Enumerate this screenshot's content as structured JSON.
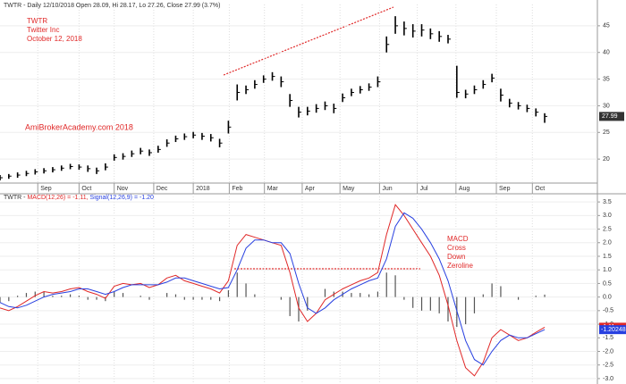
{
  "chart_data": [
    {
      "type": "ohlc",
      "title": "TWTR - Daily 12/10/2018 Open 28.09, Hi 28.17, Lo 27.26, Close 27.99 (3.7%)",
      "annotations": [
        "TWTR",
        "Twitter Inc",
        "October 12, 2018"
      ],
      "watermark": "AmiBrokerAcademy.com  2018",
      "last_label": "27.99",
      "color": "#000000",
      "high": [
        17.0,
        17.2,
        17.5,
        17.8,
        18.1,
        18.3,
        18.5,
        18.8,
        19.1,
        19.0,
        18.8,
        18.4,
        19.2,
        20.9,
        21.1,
        21.6,
        22.1,
        21.8,
        22.5,
        23.7,
        24.4,
        24.8,
        25.1,
        24.9,
        24.7,
        23.8,
        27.2,
        34.0,
        33.8,
        34.8,
        35.7,
        36.3,
        35.5,
        32.2,
        29.8,
        29.8,
        30.3,
        30.8,
        30.4,
        32.3,
        33.2,
        33.7,
        34.2,
        35.5,
        43.0,
        46.8,
        45.8,
        45.3,
        45.3,
        44.5,
        44.0,
        43.3,
        37.5,
        33.0,
        33.8,
        34.8,
        36.0,
        33.2,
        31.3,
        30.7,
        30.2,
        29.5,
        28.6
      ],
      "low": [
        16.0,
        16.3,
        16.5,
        16.8,
        17.1,
        17.3,
        17.5,
        17.8,
        18.1,
        18.0,
        17.6,
        17.2,
        17.9,
        19.7,
        19.9,
        20.4,
        20.9,
        20.6,
        21.2,
        22.3,
        23.2,
        23.6,
        23.9,
        23.6,
        23.3,
        22.2,
        24.8,
        31.0,
        32.2,
        33.2,
        34.3,
        34.7,
        33.5,
        29.8,
        27.8,
        28.2,
        28.7,
        29.2,
        28.6,
        30.7,
        31.8,
        32.3,
        32.8,
        33.5,
        40.0,
        43.5,
        43.2,
        42.8,
        43.0,
        42.5,
        42.0,
        41.7,
        31.5,
        31.4,
        32.2,
        33.2,
        34.4,
        30.8,
        29.7,
        29.3,
        28.8,
        28.0,
        26.8
      ],
      "close": [
        16.5,
        16.8,
        17.0,
        17.3,
        17.6,
        17.8,
        18.0,
        18.3,
        18.6,
        18.5,
        18.2,
        17.8,
        18.5,
        20.3,
        20.5,
        21.0,
        21.5,
        21.2,
        21.8,
        23.0,
        23.8,
        24.2,
        24.5,
        24.3,
        24.0,
        23.0,
        26.0,
        32.5,
        33.0,
        34.0,
        35.0,
        35.5,
        34.5,
        31.0,
        28.8,
        29.0,
        29.5,
        30.0,
        29.5,
        31.5,
        32.5,
        33.0,
        33.5,
        34.5,
        41.5,
        45.0,
        44.5,
        44.0,
        44.2,
        43.5,
        43.0,
        42.5,
        32.5,
        32.2,
        33.0,
        34.0,
        35.2,
        32.0,
        30.5,
        30.0,
        29.5,
        28.8,
        28.0
      ],
      "xlim": [
        0,
        68
      ],
      "xticks": [
        {
          "value": 4.3,
          "label": "Sep"
        },
        {
          "value": 9.0,
          "label": "Oct"
        },
        {
          "value": 13.0,
          "label": "Nov"
        },
        {
          "value": 17.5,
          "label": "Dec"
        },
        {
          "value": 22.0,
          "label": "2018"
        },
        {
          "value": 26.1,
          "label": "Feb"
        },
        {
          "value": 30.1,
          "label": "Mar"
        },
        {
          "value": 34.4,
          "label": "Apr"
        },
        {
          "value": 38.7,
          "label": "May"
        },
        {
          "value": 43.2,
          "label": "Jun"
        },
        {
          "value": 47.5,
          "label": "Jul"
        },
        {
          "value": 51.9,
          "label": "Aug"
        },
        {
          "value": 56.5,
          "label": "Sep"
        },
        {
          "value": 60.6,
          "label": "Oct"
        }
      ],
      "ylim": [
        15.5,
        49
      ],
      "yticks": [
        20,
        25,
        30,
        35,
        40,
        45
      ],
      "grid": true
    },
    {
      "type": "macd",
      "header": [
        "TWTR - ",
        "MACD(12,26) = -1.11, ",
        "Signal(12,26,9) = -1.20"
      ],
      "annotation": [
        "MACD",
        "Cross",
        "Down",
        "Zeroline"
      ],
      "series": [
        {
          "name": "MACD",
          "color": "#e02828",
          "last_label": "-1.11",
          "values": [
            -0.4,
            -0.5,
            -0.35,
            -0.15,
            0.05,
            0.2,
            0.15,
            0.2,
            0.3,
            0.35,
            0.2,
            0.1,
            -0.05,
            0.4,
            0.5,
            0.45,
            0.5,
            0.35,
            0.45,
            0.7,
            0.8,
            0.6,
            0.5,
            0.4,
            0.3,
            0.15,
            0.6,
            1.9,
            2.3,
            2.2,
            2.1,
            2.0,
            1.9,
            0.9,
            -0.4,
            -0.9,
            -0.6,
            -0.1,
            0.1,
            0.3,
            0.45,
            0.6,
            0.7,
            0.9,
            2.3,
            3.4,
            3.0,
            2.5,
            2.0,
            1.5,
            0.8,
            -0.3,
            -1.6,
            -2.6,
            -2.9,
            -2.4,
            -1.5,
            -1.2,
            -1.4,
            -1.6,
            -1.5,
            -1.3,
            -1.11
          ]
        },
        {
          "name": "Signal",
          "color": "#2840e0",
          "last_label": "-1.20248",
          "values": [
            -0.2,
            -0.35,
            -0.4,
            -0.3,
            -0.15,
            0.0,
            0.1,
            0.15,
            0.2,
            0.3,
            0.3,
            0.2,
            0.1,
            0.2,
            0.35,
            0.45,
            0.45,
            0.45,
            0.45,
            0.55,
            0.7,
            0.7,
            0.6,
            0.5,
            0.4,
            0.3,
            0.35,
            1.0,
            1.8,
            2.1,
            2.1,
            2.0,
            2.0,
            1.6,
            0.5,
            -0.4,
            -0.6,
            -0.4,
            -0.1,
            0.1,
            0.3,
            0.45,
            0.6,
            0.7,
            1.4,
            2.6,
            3.1,
            2.9,
            2.5,
            2.0,
            1.4,
            0.6,
            -0.5,
            -1.6,
            -2.3,
            -2.5,
            -2.0,
            -1.6,
            -1.4,
            -1.5,
            -1.5,
            -1.35,
            -1.2
          ]
        }
      ],
      "histogram": {
        "color": "#555555",
        "values": [
          -0.2,
          -0.15,
          0.05,
          0.15,
          0.2,
          0.2,
          0.05,
          0.05,
          0.1,
          0.05,
          -0.1,
          -0.1,
          -0.15,
          0.2,
          0.15,
          0,
          0.05,
          -0.1,
          0,
          0.15,
          0.1,
          -0.1,
          -0.1,
          -0.1,
          -0.1,
          -0.15,
          0.25,
          0.9,
          0.5,
          0.1,
          0,
          0,
          -0.1,
          -0.7,
          -0.9,
          -0.5,
          0,
          0.3,
          0.2,
          0.2,
          0.15,
          0.15,
          0.1,
          0.2,
          0.9,
          0.8,
          -0.1,
          -0.4,
          -0.5,
          -0.5,
          -0.6,
          -0.9,
          -1.1,
          -1.0,
          -0.6,
          0.1,
          0.5,
          0.4,
          0,
          -0.1,
          0,
          0.05,
          0.09
        ]
      },
      "ylim": [
        -3.2,
        3.8
      ],
      "yticks": [
        {
          "value": 3.5,
          "label": "3.5"
        },
        {
          "value": 3,
          "label": "3.0"
        },
        {
          "value": 2.5,
          "label": "2.5"
        },
        {
          "value": 2,
          "label": "2.0"
        },
        {
          "value": 1.5,
          "label": "1.5"
        },
        {
          "value": 1,
          "label": "1.0"
        },
        {
          "value": 0.5,
          "label": "0.5"
        },
        {
          "value": 0,
          "label": "0.0"
        },
        {
          "value": -0.5,
          "label": "-0.5"
        },
        {
          "value": -1,
          "label": "-1.0"
        },
        {
          "value": -1.5,
          "label": "-1.5"
        },
        {
          "value": -2,
          "label": "-2.0"
        },
        {
          "value": -2.5,
          "label": "-2.5"
        },
        {
          "value": -3,
          "label": "-3.0"
        }
      ],
      "grid": true
    }
  ]
}
